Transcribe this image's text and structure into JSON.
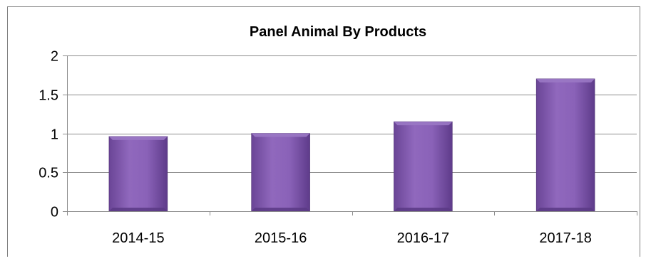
{
  "chart_data": {
    "type": "bar",
    "title": "Panel Animal By Products",
    "categories": [
      "2014-15",
      "2015-16",
      "2016-17",
      "2017-18"
    ],
    "values": [
      0.96,
      1.0,
      1.15,
      1.7
    ],
    "yticks": [
      "0",
      "0.5",
      "1",
      "1.5",
      "2"
    ],
    "ylim": [
      0,
      2
    ],
    "xlabel": "",
    "ylabel": "",
    "grid": true,
    "legend": "none",
    "bar_color": "#7a52a6",
    "bar_color_light": "#9a78c4",
    "bar_color_dark": "#5b3a85"
  }
}
